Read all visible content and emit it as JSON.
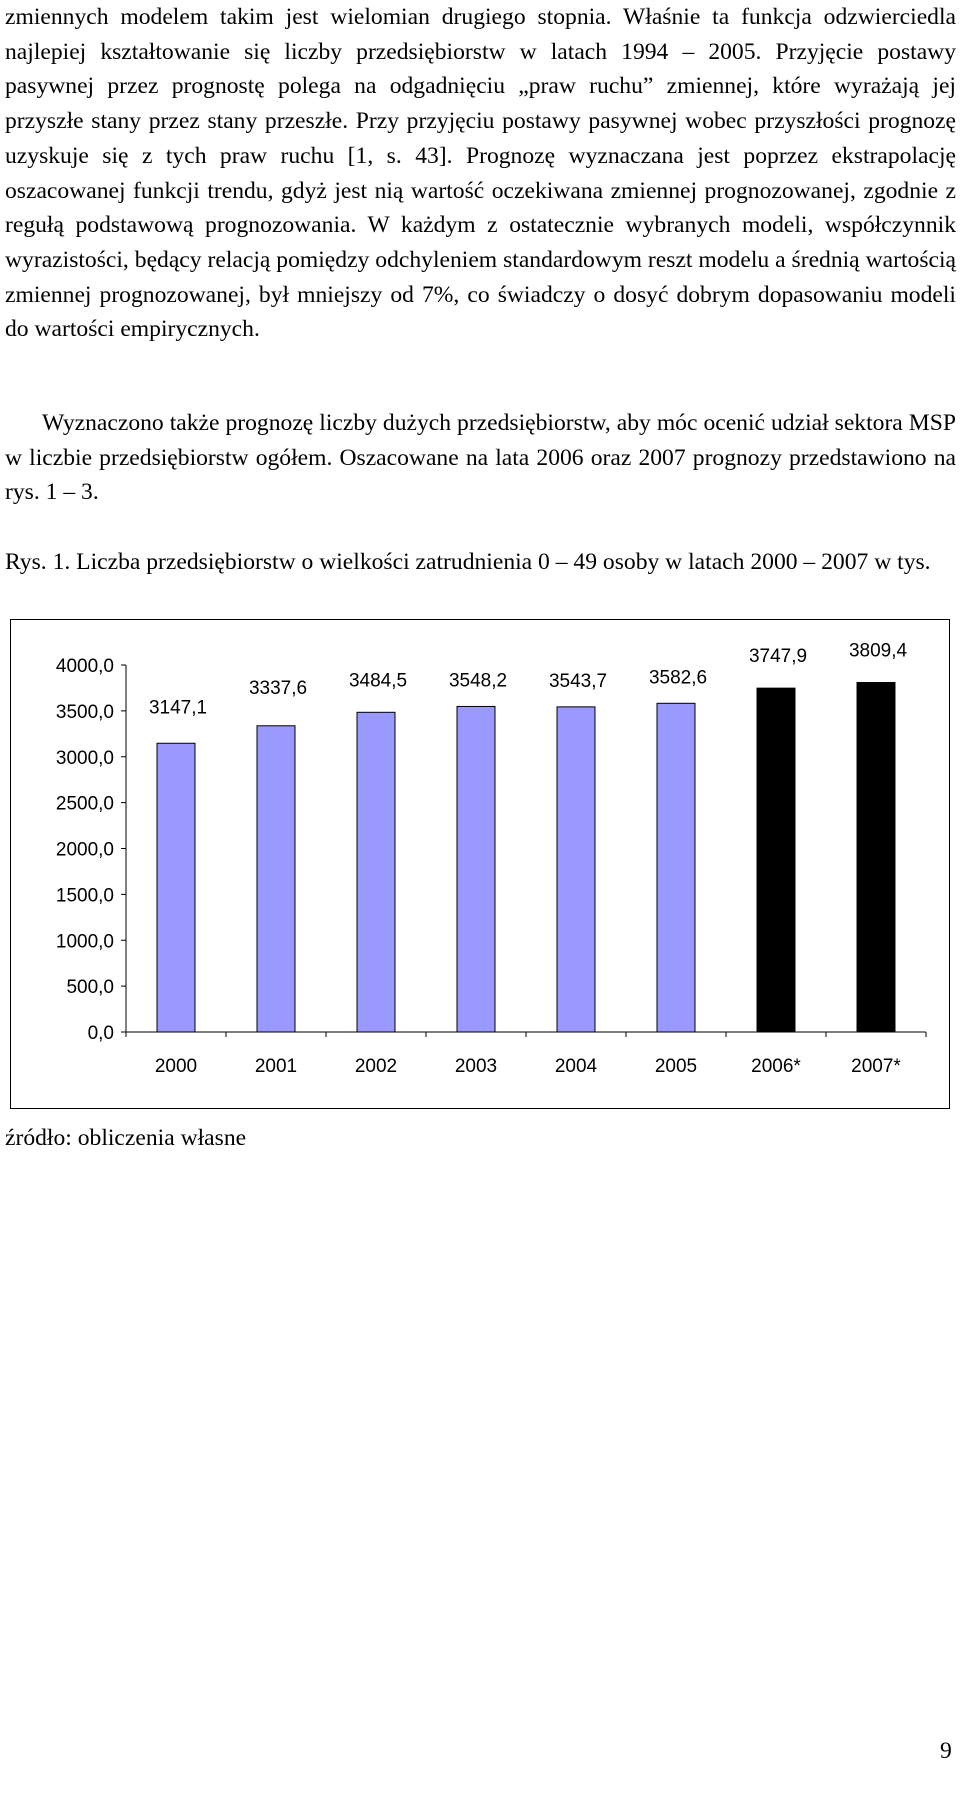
{
  "body": {
    "paragraph1": "zmiennych modelem takim jest wielomian drugiego stopnia. Właśnie ta funkcja odzwierciedla najlepiej kształtowanie się liczby przedsiębiorstw w latach 1994 – 2005. Przyjęcie postawy pasywnej przez prognostę polega na odgadnięciu „praw ruchu” zmiennej, które wyrażają jej przyszłe stany przez stany przeszłe. Przy przyjęciu postawy pasywnej wobec przyszłości prognozę uzyskuje się z tych praw ruchu [1, s. 43]. Prognozę wyznaczana jest poprzez ekstrapolację oszacowanej funkcji trendu, gdyż jest nią wartość oczekiwana zmiennej prognozowanej, zgodnie z regułą podstawową prognozowania. W każdym z ostatecznie wybranych modeli, współczynnik wyrazistości, będący relacją pomiędzy odchyleniem standardowym reszt modelu a średnią wartością zmiennej prognozowanej, był mniejszy od 7%, co świadczy o dosyć dobrym dopasowaniu modeli do wartości empirycznych.",
    "paragraph2": "Wyznaczono także prognozę liczby dużych przedsiębiorstw, aby móc ocenić udział sektora MSP w liczbie przedsiębiorstw ogółem. Oszacowane na lata 2006 oraz 2007 prognozy przedstawiono na rys. 1 – 3.",
    "figure_caption": "Rys. 1. Liczba przedsiębiorstw o wielkości zatrudnienia 0 – 49 osoby w latach 2000 – 2007 w tys.",
    "source_note": "źródło: obliczenia własne",
    "page_number": "9"
  },
  "chart_data": {
    "type": "bar",
    "categories": [
      "2000",
      "2001",
      "2002",
      "2003",
      "2004",
      "2005",
      "2006*",
      "2007*"
    ],
    "values": [
      3147.1,
      3337.6,
      3484.5,
      3548.2,
      3543.7,
      3582.6,
      3747.9,
      3809.4
    ],
    "value_labels": [
      "3147,1",
      "3337,6",
      "3484,5",
      "3548,2",
      "3543,7",
      "3582,6",
      "3747,9",
      "3809,4"
    ],
    "bar_colors": [
      "#9999ff",
      "#9999ff",
      "#9999ff",
      "#9999ff",
      "#9999ff",
      "#9999ff",
      "#000000",
      "#000000"
    ],
    "yticks": [
      0,
      500,
      1000,
      1500,
      2000,
      2500,
      3000,
      3500,
      4000
    ],
    "ytick_labels": [
      "0,0",
      "500,0",
      "1000,0",
      "1500,0",
      "2000,0",
      "2500,0",
      "3000,0",
      "3500,0",
      "4000,0"
    ],
    "ylim": [
      0,
      4000
    ],
    "title": "",
    "xlabel": "",
    "ylabel": "",
    "grid": false,
    "legend": false
  }
}
